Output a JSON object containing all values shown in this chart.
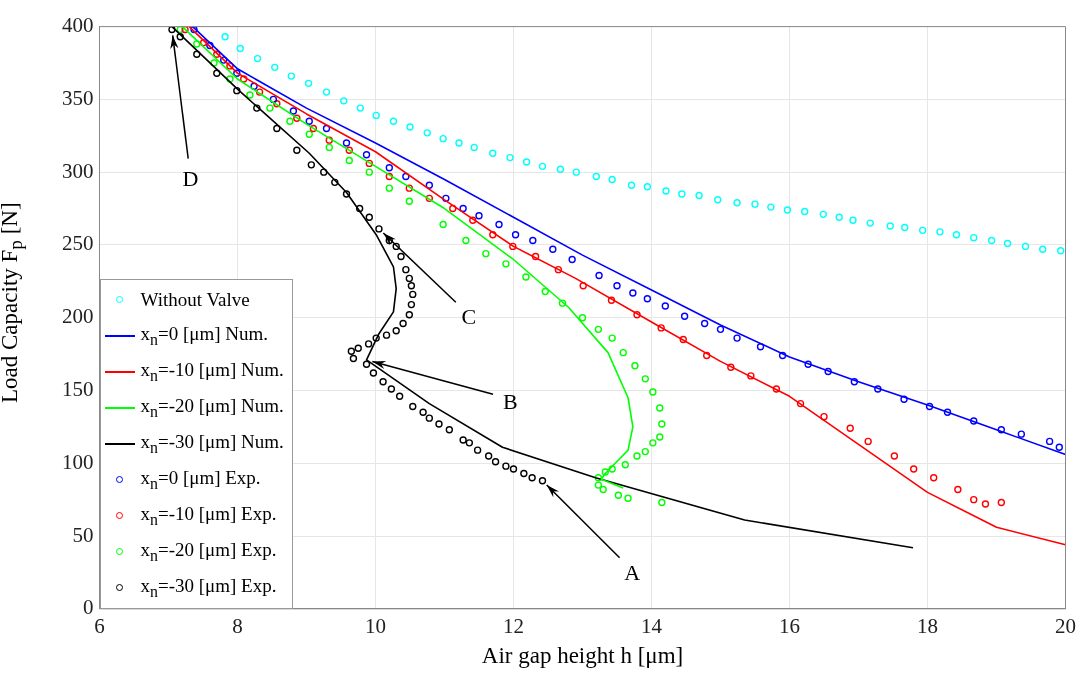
{
  "chart_data": {
    "type": "scatter",
    "xlabel": "Air gap height  h [μm]",
    "ylabel": "Load Capacity  F$_{p}$ [N]",
    "xlim": [
      6,
      20
    ],
    "xticks": [
      6,
      8,
      10,
      12,
      14,
      16,
      18,
      20
    ],
    "ylim": [
      0,
      400
    ],
    "yticks": [
      0,
      50,
      100,
      150,
      200,
      250,
      300,
      350,
      400
    ],
    "grid": true,
    "legend": "bottom left",
    "annotations": [
      {
        "text": "A",
        "x": 12.42,
        "y": 88
      },
      {
        "text": "B",
        "x": 9.87,
        "y": 171
      },
      {
        "text": "C",
        "x": 10.05,
        "y": 261
      },
      {
        "text": "D",
        "x": 7.05,
        "y": 398
      }
    ],
    "series": [
      {
        "name": "Without Valve",
        "marker": "circle",
        "color": "#00ffff",
        "x": [
          7.82,
          8.04,
          8.29,
          8.54,
          8.78,
          9.03,
          9.29,
          9.54,
          9.78,
          10.01,
          10.26,
          10.5,
          10.75,
          10.98,
          11.21,
          11.43,
          11.7,
          11.95,
          12.19,
          12.42,
          12.68,
          12.91,
          13.2,
          13.43,
          13.71,
          13.94,
          14.21,
          14.44,
          14.69,
          14.96,
          15.24,
          15.5,
          15.73,
          15.97,
          16.22,
          16.49,
          16.72,
          16.92,
          17.17,
          17.46,
          17.67,
          17.93,
          18.18,
          18.42,
          18.67,
          18.93,
          19.16,
          19.42,
          19.67,
          19.93
        ],
        "values": [
          393,
          385,
          378,
          372,
          366,
          361,
          355,
          349,
          344,
          339,
          335,
          331,
          327,
          323,
          320,
          317,
          313,
          310,
          307,
          304,
          302,
          300,
          297,
          295,
          291,
          290,
          287,
          285,
          284,
          281,
          279,
          278,
          276,
          274,
          273,
          271,
          269,
          267,
          265,
          263,
          262,
          260,
          259,
          257,
          255,
          253,
          251,
          249,
          247,
          246
        ]
      },
      {
        "name": "x$_{n}$=0 [μm] Num.",
        "type": "line",
        "marker": "none",
        "color": "#0000ff",
        "x": [
          7.35,
          8,
          9,
          10,
          11,
          12,
          13,
          14,
          15,
          16,
          17,
          18,
          19,
          20
        ],
        "values": [
          400,
          371,
          344,
          320,
          295,
          269,
          243,
          219,
          195,
          173,
          156,
          140,
          123,
          106
        ]
      },
      {
        "name": "x$_{n}$=-10 [μm] Num.",
        "type": "line",
        "marker": "none",
        "color": "#ff0000",
        "x": [
          7.3,
          8,
          9,
          10,
          11,
          12,
          12.9,
          14,
          15,
          16,
          17,
          18,
          19,
          20
        ],
        "values": [
          400,
          368,
          340,
          314,
          281,
          249,
          227,
          197,
          170,
          146,
          113,
          80,
          56,
          44
        ]
      },
      {
        "name": "x$_{n}$=-20 [μm] Num.",
        "type": "line",
        "marker": "none",
        "color": "#00ff00",
        "x": [
          7.2,
          8,
          9,
          10,
          11,
          12,
          12.8,
          13.37,
          13.66,
          13.73,
          13.66,
          13.33,
          13.27,
          13.59
        ],
        "values": [
          400,
          364,
          333,
          304,
          275,
          240,
          207,
          176,
          145,
          125,
          109,
          93,
          89,
          83
        ]
      },
      {
        "name": "x$_{n}$=-30 [μm] Num.",
        "type": "line",
        "marker": "none",
        "color": "#000000",
        "x": [
          7.05,
          8,
          9.04,
          9.58,
          10.01,
          10.26,
          10.3,
          10.26,
          10.05,
          9.87,
          10.78,
          11.84,
          13.19,
          15.35,
          17.79
        ],
        "values": [
          400,
          357,
          313,
          286,
          257,
          235,
          220,
          204,
          189,
          171,
          141,
          111,
          90,
          61,
          42
        ]
      },
      {
        "name": "x$_{n}$=0 [μm] Exp.",
        "marker": "circle",
        "color": "#0000ff",
        "x": [
          7.37,
          7.6,
          7.8,
          7.99,
          8.24,
          8.52,
          8.81,
          9.04,
          9.29,
          9.58,
          9.87,
          10.2,
          10.44,
          10.78,
          11.02,
          11.27,
          11.5,
          11.79,
          12.03,
          12.28,
          12.57,
          12.85,
          13.24,
          13.5,
          13.73,
          13.94,
          14.2,
          14.48,
          14.77,
          15,
          15.24,
          15.58,
          15.9,
          16.27,
          16.56,
          16.94,
          17.28,
          17.66,
          18.03,
          18.29,
          18.67,
          19.07,
          19.36,
          19.77,
          19.91
        ],
        "values": [
          398,
          387,
          377,
          368,
          359,
          350,
          342,
          335,
          330,
          320,
          312,
          303,
          297,
          291,
          282,
          275,
          270,
          264,
          257,
          253,
          247,
          240,
          229,
          222,
          217,
          213,
          208,
          201,
          196,
          192,
          186,
          180,
          174,
          168,
          163,
          156,
          151,
          144,
          139,
          135,
          129,
          123,
          120,
          115,
          111
        ]
      },
      {
        "name": "x$_{n}$=-10 [μm] Exp.",
        "marker": "circle",
        "color": "#ff0000",
        "x": [
          7.24,
          7.51,
          7.7,
          7.89,
          8.09,
          8.32,
          8.57,
          8.86,
          9.1,
          9.33,
          9.62,
          9.91,
          10.2,
          10.49,
          10.78,
          11.12,
          11.41,
          11.7,
          11.99,
          12.32,
          12.65,
          13.01,
          13.42,
          13.79,
          14.14,
          14.46,
          14.8,
          15.15,
          15.44,
          15.81,
          16.16,
          16.5,
          16.88,
          17.14,
          17.52,
          17.8,
          18.09,
          18.44,
          18.67,
          18.84,
          19.07
        ],
        "values": [
          398,
          389,
          381,
          373,
          364,
          355,
          347,
          337,
          330,
          322,
          315,
          306,
          297,
          289,
          282,
          275,
          267,
          257,
          249,
          242,
          233,
          222,
          212,
          202,
          193,
          185,
          174,
          166,
          160,
          151,
          141,
          132,
          124,
          115,
          105,
          96,
          90,
          82,
          75,
          72,
          73
        ]
      },
      {
        "name": "x$_{n}$=-20 [μm] Exp.",
        "marker": "circle",
        "color": "#00ff00",
        "x": [
          7.17,
          7.41,
          7.66,
          7.89,
          8.18,
          8.47,
          8.76,
          9.04,
          9.33,
          9.62,
          9.91,
          10.2,
          10.49,
          10.98,
          11.31,
          11.6,
          11.89,
          12.18,
          12.46,
          12.71,
          13,
          13.23,
          13.43,
          13.59,
          13.76,
          13.91,
          14.02,
          14.12,
          14.15,
          14.12,
          14.02,
          13.91,
          13.79,
          13.62,
          13.43,
          13.33,
          13.23,
          13.23,
          13.3,
          13.52,
          13.66,
          14.15
        ],
        "values": [
          398,
          388,
          375,
          364,
          353,
          344,
          335,
          326,
          317,
          308,
          300,
          289,
          280,
          264,
          253,
          244,
          237,
          228,
          218,
          210,
          200,
          192,
          186,
          176,
          167,
          158,
          149,
          138,
          127,
          118,
          114,
          108,
          105,
          99,
          96,
          94,
          90,
          85,
          82,
          78,
          76,
          73
        ]
      },
      {
        "name": "x$_{n}$=-30 [μm] Exp.",
        "marker": "circle",
        "color": "#000000",
        "x": [
          7.05,
          7.17,
          7.41,
          7.7,
          7.99,
          8.28,
          8.57,
          8.86,
          9.07,
          9.25,
          9.41,
          9.58,
          9.77,
          9.91,
          10.05,
          10.2,
          10.3,
          10.37,
          10.44,
          10.49,
          10.52,
          10.54,
          10.52,
          10.49,
          10.4,
          10.3,
          10.16,
          10.01,
          9.9,
          9.75,
          9.65,
          9.68,
          9.87,
          9.97,
          10.11,
          10.23,
          10.35,
          10.54,
          10.69,
          10.78,
          10.92,
          11.07,
          11.27,
          11.36,
          11.48,
          11.64,
          11.74,
          11.89,
          12,
          12.15,
          12.27,
          12.42
        ],
        "values": [
          398,
          393,
          381,
          368,
          356,
          344,
          330,
          315,
          305,
          300,
          293,
          285,
          275,
          269,
          261,
          253,
          249,
          242,
          233,
          227,
          222,
          216,
          209,
          202,
          196,
          191,
          188,
          186,
          182,
          179,
          177,
          172,
          168,
          162,
          156,
          151,
          146,
          139,
          135,
          131,
          127,
          123,
          116,
          114,
          109,
          105,
          101,
          98,
          96,
          93,
          90,
          88
        ]
      }
    ]
  }
}
